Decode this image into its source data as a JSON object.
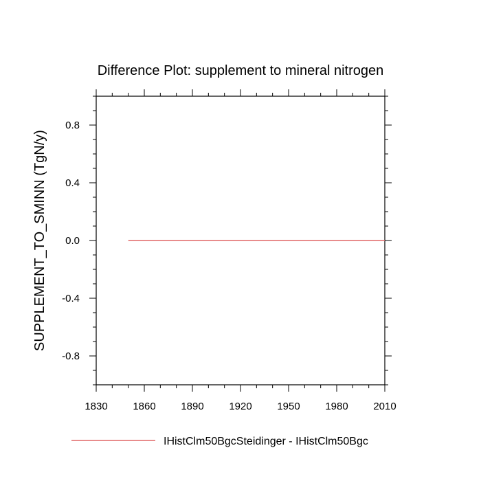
{
  "chart_data": {
    "type": "line",
    "title": "Difference Plot: supplement to mineral nitrogen",
    "xlabel": "",
    "ylabel": "SUPPLEMENT_TO_SMINN  (TgN/y)",
    "xlim": [
      1830,
      2010
    ],
    "ylim": [
      -1,
      1
    ],
    "x_ticks": [
      1830,
      1860,
      1890,
      1920,
      1950,
      1980,
      2010
    ],
    "y_ticks": [
      -0.8,
      -0.4,
      0.0,
      0.4,
      0.8
    ],
    "y_tick_labels": [
      "-0.8",
      "-0.4",
      "0.0",
      "0.4",
      "0.8"
    ],
    "grid": false,
    "legend_position": "bottom",
    "series": [
      {
        "name": "IHistClm50BgcSteidinger - IHistClm50Bgc",
        "color": "#e06666",
        "x": [
          1850,
          2010
        ],
        "values": [
          0.0,
          0.0
        ]
      }
    ]
  }
}
